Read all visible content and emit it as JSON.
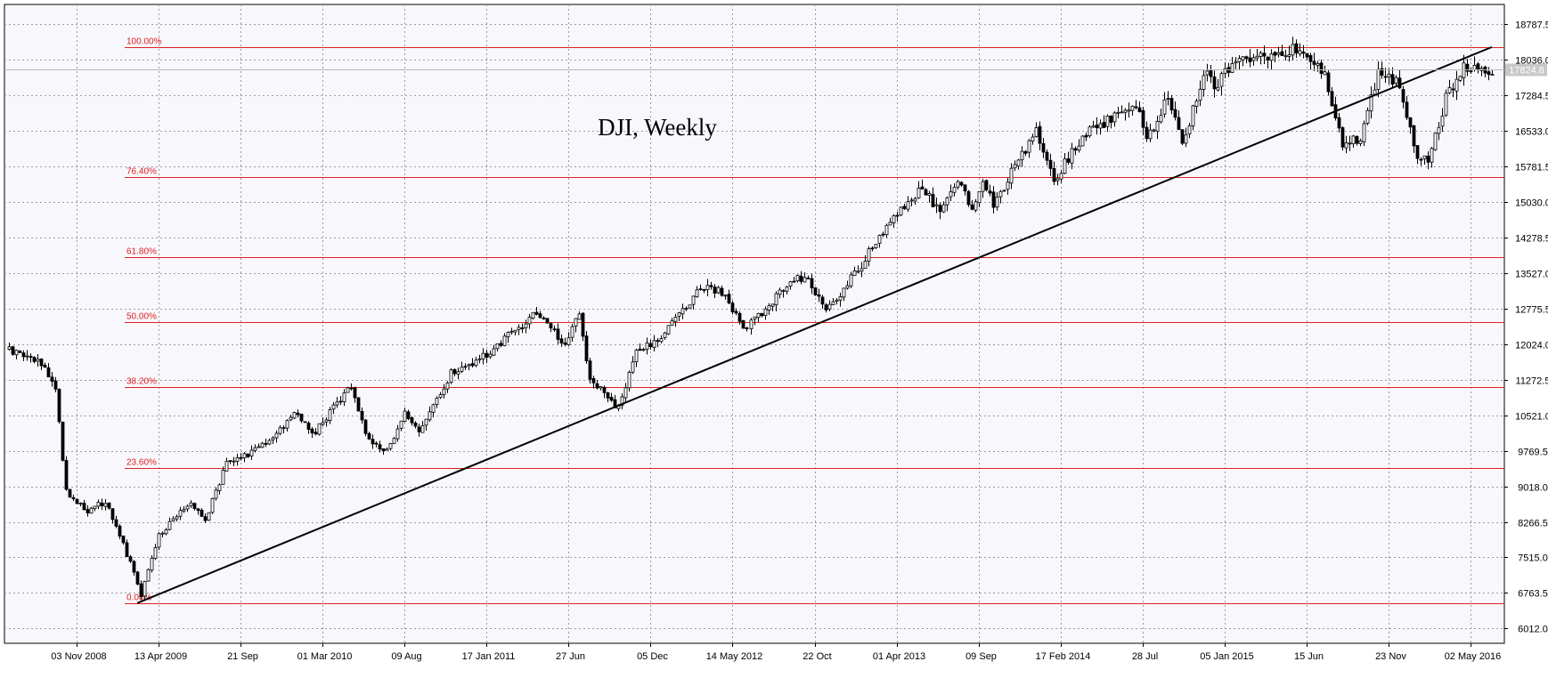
{
  "window": {
    "corner_label": ""
  },
  "chart_data": {
    "type": "candlestick",
    "title": "DJI, Weekly",
    "timeframe": "Weekly",
    "symbol": "DJI",
    "ylim": [
      5700,
      19200
    ],
    "y_ticks": [
      "18787.5",
      "18036.0",
      "17284.5",
      "16533.0",
      "15781.5",
      "15030.0",
      "14278.5",
      "13527.0",
      "12775.5",
      "12024.0",
      "11272.5",
      "10521.0",
      "9769.5",
      "9018.0",
      "8266.5",
      "7515.0",
      "6763.5",
      "6012.0"
    ],
    "current_price": "17824.8",
    "current_price_value": 17824.8,
    "x_range": [
      "2008-06-23",
      "2016-06-13"
    ],
    "x_ticks": [
      {
        "date": "2008-11-03",
        "label": "03 Nov 2008"
      },
      {
        "date": "2009-04-13",
        "label": "13 Apr 2009"
      },
      {
        "date": "2009-09-21",
        "label": "21 Sep"
      },
      {
        "date": "2010-03-01",
        "label": "01 Mar 2010"
      },
      {
        "date": "2010-08-09",
        "label": "09 Aug"
      },
      {
        "date": "2011-01-17",
        "label": "17 Jan 2011"
      },
      {
        "date": "2011-06-27",
        "label": "27 Jun"
      },
      {
        "date": "2011-12-05",
        "label": "05 Dec"
      },
      {
        "date": "2012-05-14",
        "label": "14 May 2012"
      },
      {
        "date": "2012-10-22",
        "label": "22 Oct"
      },
      {
        "date": "2013-04-01",
        "label": "01 Apr 2013"
      },
      {
        "date": "2013-09-09",
        "label": "09 Sep"
      },
      {
        "date": "2014-02-17",
        "label": "17 Feb 2014"
      },
      {
        "date": "2014-07-28",
        "label": "28 Jul"
      },
      {
        "date": "2015-01-05",
        "label": "05 Jan 2015"
      },
      {
        "date": "2015-06-15",
        "label": "15 Jun"
      },
      {
        "date": "2015-11-23",
        "label": "23 Nov"
      },
      {
        "date": "2016-05-02",
        "label": "02 May 2016"
      }
    ],
    "fibonacci_levels": [
      {
        "label": "100.00%",
        "value": 18300
      },
      {
        "label": "76.40%",
        "value": 15560
      },
      {
        "label": "61.80%",
        "value": 13860
      },
      {
        "label": "50.00%",
        "value": 12480
      },
      {
        "label": "38.20%",
        "value": 11110
      },
      {
        "label": "23.60%",
        "value": 9410
      },
      {
        "label": "0.00%",
        "value": 6550
      }
    ],
    "trendline": {
      "start": {
        "date": "2009-03-02",
        "value": 6550
      },
      "end": {
        "date": "2016-06-13",
        "value": 18300
      }
    },
    "key_points": [
      {
        "date": "2008-06-23",
        "value": 11900
      },
      {
        "date": "2008-08-25",
        "value": 11600
      },
      {
        "date": "2008-09-22",
        "value": 11100
      },
      {
        "date": "2008-10-13",
        "value": 8900
      },
      {
        "date": "2008-11-24",
        "value": 8500
      },
      {
        "date": "2008-12-29",
        "value": 8700
      },
      {
        "date": "2009-02-16",
        "value": 7400
      },
      {
        "date": "2009-03-09",
        "value": 6700
      },
      {
        "date": "2009-04-13",
        "value": 8000
      },
      {
        "date": "2009-06-15",
        "value": 8700
      },
      {
        "date": "2009-07-13",
        "value": 8300
      },
      {
        "date": "2009-08-24",
        "value": 9500
      },
      {
        "date": "2009-10-26",
        "value": 9800
      },
      {
        "date": "2010-01-11",
        "value": 10600
      },
      {
        "date": "2010-02-08",
        "value": 10100
      },
      {
        "date": "2010-04-26",
        "value": 11150
      },
      {
        "date": "2010-05-24",
        "value": 10100
      },
      {
        "date": "2010-07-05",
        "value": 9750
      },
      {
        "date": "2010-08-09",
        "value": 10600
      },
      {
        "date": "2010-09-06",
        "value": 10200
      },
      {
        "date": "2010-11-08",
        "value": 11400
      },
      {
        "date": "2011-01-17",
        "value": 11800
      },
      {
        "date": "2011-04-25",
        "value": 12700
      },
      {
        "date": "2011-06-20",
        "value": 12000
      },
      {
        "date": "2011-07-18",
        "value": 12650
      },
      {
        "date": "2011-08-08",
        "value": 11300
      },
      {
        "date": "2011-10-03",
        "value": 10650
      },
      {
        "date": "2011-11-07",
        "value": 11900
      },
      {
        "date": "2011-12-19",
        "value": 12100
      },
      {
        "date": "2012-03-12",
        "value": 13200
      },
      {
        "date": "2012-04-30",
        "value": 13100
      },
      {
        "date": "2012-06-04",
        "value": 12300
      },
      {
        "date": "2012-08-13",
        "value": 13100
      },
      {
        "date": "2012-10-01",
        "value": 13500
      },
      {
        "date": "2012-11-12",
        "value": 12700
      },
      {
        "date": "2013-01-14",
        "value": 13600
      },
      {
        "date": "2013-03-11",
        "value": 14500
      },
      {
        "date": "2013-05-20",
        "value": 15300
      },
      {
        "date": "2013-06-24",
        "value": 14800
      },
      {
        "date": "2013-07-29",
        "value": 15500
      },
      {
        "date": "2013-08-26",
        "value": 14900
      },
      {
        "date": "2013-09-16",
        "value": 15500
      },
      {
        "date": "2013-10-07",
        "value": 15000
      },
      {
        "date": "2013-12-30",
        "value": 16500
      },
      {
        "date": "2014-02-03",
        "value": 15500
      },
      {
        "date": "2014-03-31",
        "value": 16400
      },
      {
        "date": "2014-07-14",
        "value": 17100
      },
      {
        "date": "2014-08-04",
        "value": 16400
      },
      {
        "date": "2014-09-15",
        "value": 17200
      },
      {
        "date": "2014-10-13",
        "value": 16300
      },
      {
        "date": "2014-12-01",
        "value": 17800
      },
      {
        "date": "2014-12-15",
        "value": 17300
      },
      {
        "date": "2015-01-05",
        "value": 17800
      },
      {
        "date": "2015-03-02",
        "value": 18100
      },
      {
        "date": "2015-05-18",
        "value": 18250
      },
      {
        "date": "2015-07-20",
        "value": 17700
      },
      {
        "date": "2015-08-24",
        "value": 16200
      },
      {
        "date": "2015-09-28",
        "value": 16400
      },
      {
        "date": "2015-11-02",
        "value": 17700
      },
      {
        "date": "2015-12-14",
        "value": 17500
      },
      {
        "date": "2016-01-18",
        "value": 16000
      },
      {
        "date": "2016-02-08",
        "value": 15900
      },
      {
        "date": "2016-03-14",
        "value": 17200
      },
      {
        "date": "2016-04-18",
        "value": 17900
      },
      {
        "date": "2016-05-23",
        "value": 17800
      },
      {
        "date": "2016-06-13",
        "value": 17825
      }
    ]
  }
}
